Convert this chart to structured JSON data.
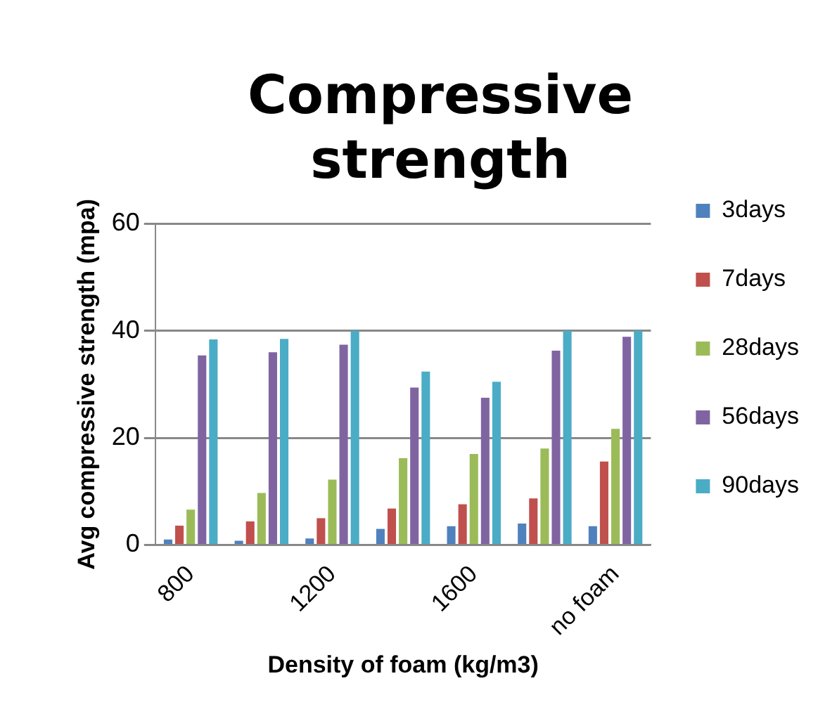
{
  "chart_data": {
    "type": "bar",
    "title": "Compressive strength",
    "xlabel": "Density of foam (kg/m3)",
    "ylabel": "Avg compressive strength (mpa)",
    "categories": [
      "800",
      null,
      "1200",
      null,
      "1600",
      null,
      "no foam"
    ],
    "series": [
      {
        "name": "3days",
        "color": "#4f81bd",
        "values": [
          1,
          0.8,
          1.2,
          3,
          3.5,
          4,
          3.5
        ]
      },
      {
        "name": "7days",
        "color": "#c0504d",
        "values": [
          3.6,
          4.4,
          5,
          6.8,
          7.6,
          8.7,
          15.6
        ]
      },
      {
        "name": "28days",
        "color": "#9bbb59",
        "values": [
          6.6,
          9.7,
          12.2,
          16.2,
          17,
          18,
          21.7
        ]
      },
      {
        "name": "56days",
        "color": "#8064a2",
        "values": [
          35.4,
          36,
          37.4,
          29.4,
          27.5,
          36.3,
          38.9
        ]
      },
      {
        "name": "90days",
        "color": "#4bacc6",
        "values": [
          38.4,
          38.5,
          40,
          32.4,
          30.5,
          40,
          40
        ]
      }
    ],
    "ylim": [
      0,
      60
    ],
    "yticks": [
      0,
      20,
      40,
      60
    ],
    "grid": "y",
    "legend": "right"
  }
}
